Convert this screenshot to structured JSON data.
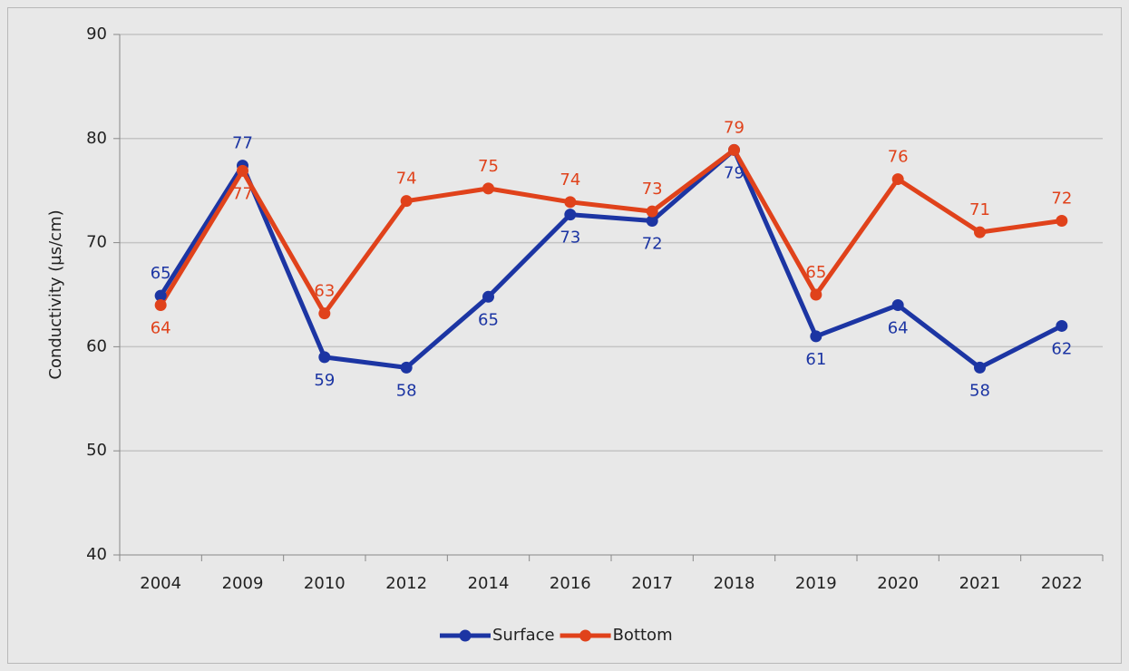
{
  "chart_data": {
    "type": "line",
    "y_label": "Conductivity (µs/cm)",
    "categories": [
      "2004",
      "2009",
      "2010",
      "2012",
      "2014",
      "2016",
      "2017",
      "2018",
      "2019",
      "2020",
      "2021",
      "2022"
    ],
    "series": [
      {
        "name": "Surface",
        "color": "#1c35a3",
        "values": [
          64.9,
          77.4,
          59.0,
          58.0,
          64.8,
          72.7,
          72.1,
          78.9,
          61.0,
          64.0,
          58.0,
          62.0
        ],
        "value_labels": [
          "65",
          "77",
          "59",
          "58",
          "65",
          "73",
          "72",
          "79",
          "61",
          "64",
          "58",
          "62"
        ]
      },
      {
        "name": "Bottom",
        "color": "#e0421b",
        "values": [
          64.0,
          76.9,
          63.2,
          74.0,
          75.2,
          73.9,
          73.0,
          78.9,
          65.0,
          76.1,
          71.0,
          72.1
        ],
        "value_labels": [
          "64",
          "77",
          "63",
          "74",
          "75",
          "74",
          "73",
          "79",
          "65",
          "76",
          "71",
          "72"
        ]
      }
    ],
    "ylim": [
      40,
      90
    ],
    "yticks": [
      40,
      50,
      60,
      70,
      80,
      90
    ],
    "grid": true,
    "legend": "bottom"
  }
}
